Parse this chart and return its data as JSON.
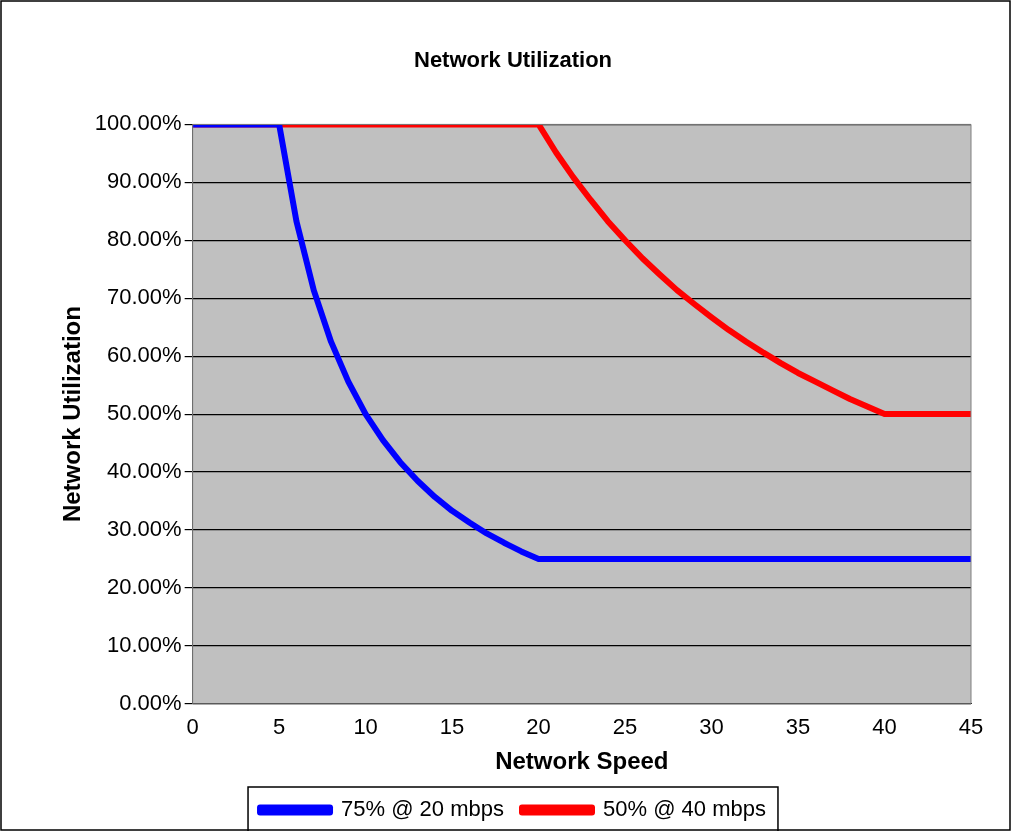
{
  "chart_data": {
    "type": "line",
    "title": "Network Utilization",
    "xlabel": "Network Speed",
    "ylabel": "Network Utilization",
    "xlim": [
      0,
      45
    ],
    "xticks": [
      0,
      5,
      10,
      15,
      20,
      25,
      30,
      35,
      40,
      45
    ],
    "ylim": [
      0,
      100
    ],
    "yticks": [
      {
        "value": 0,
        "label": "0.00%"
      },
      {
        "value": 10,
        "label": "10.00%"
      },
      {
        "value": 20,
        "label": "20.00%"
      },
      {
        "value": 30,
        "label": "30.00%"
      },
      {
        "value": 40,
        "label": "40.00%"
      },
      {
        "value": 50,
        "label": "50.00%"
      },
      {
        "value": 60,
        "label": "60.00%"
      },
      {
        "value": 70,
        "label": "70.00%"
      },
      {
        "value": 80,
        "label": "80.00%"
      },
      {
        "value": 90,
        "label": "90.00%"
      },
      {
        "value": 100,
        "label": "100.00%"
      }
    ],
    "grid": "y",
    "legend": "bottom",
    "marker": "none",
    "line_style": "solid",
    "series": [
      {
        "name": "75% @ 20 mbps",
        "color": "#0000ff",
        "x": [
          0,
          5,
          6,
          7,
          8,
          9,
          10,
          11,
          12,
          13,
          14,
          15,
          16,
          17,
          18,
          19,
          20,
          45
        ],
        "values": [
          100,
          100,
          83.3,
          71.4,
          62.5,
          55.6,
          50,
          45.5,
          41.7,
          38.5,
          35.7,
          33.3,
          31.3,
          29.4,
          27.8,
          26.3,
          25,
          25
        ]
      },
      {
        "name": "50% @ 40 mbps",
        "color": "#ff0000",
        "x": [
          0,
          20,
          21,
          22,
          23,
          24,
          25,
          26,
          27,
          28,
          29,
          30,
          31,
          32,
          33,
          34,
          35,
          36,
          37,
          38,
          39,
          40,
          45
        ],
        "values": [
          100,
          100,
          95.2,
          90.9,
          87.0,
          83.3,
          80,
          76.9,
          74.1,
          71.4,
          69.0,
          66.7,
          64.5,
          62.5,
          60.6,
          58.8,
          57.1,
          55.6,
          54.1,
          52.6,
          51.3,
          50,
          50
        ]
      }
    ]
  }
}
